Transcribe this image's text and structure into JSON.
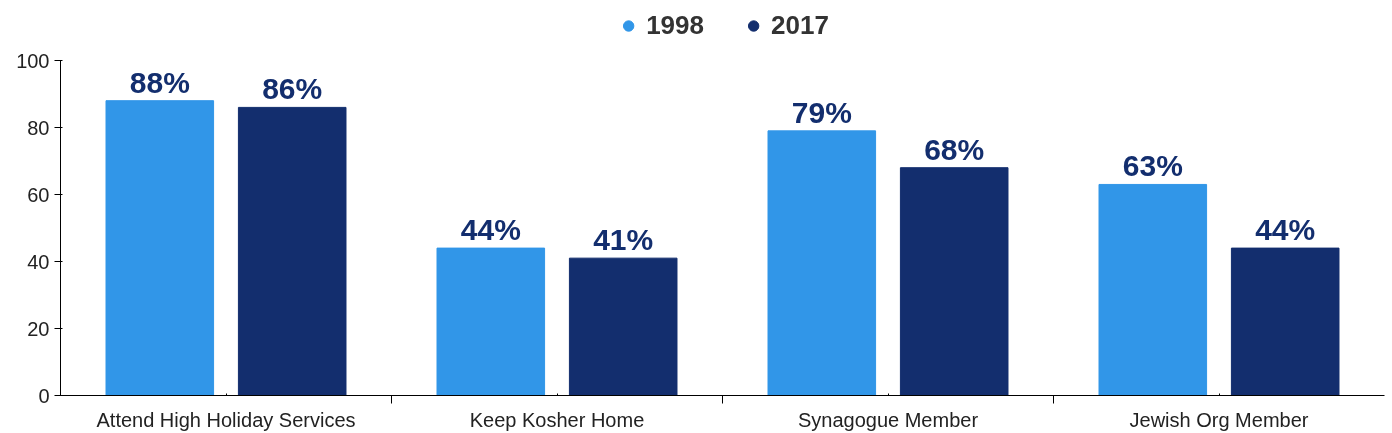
{
  "chart_data": {
    "type": "bar",
    "categories": [
      "Attend High Holiday Services",
      "Keep Kosher Home",
      "Synagogue Member",
      "Jewish Org Member"
    ],
    "series": [
      {
        "name": "1998",
        "color": "#3196e8",
        "values": [
          88,
          44,
          79,
          63
        ],
        "value_labels": [
          "88%",
          "44%",
          "79%",
          "63%"
        ]
      },
      {
        "name": "2017",
        "color": "#132e6e",
        "values": [
          86,
          41,
          68,
          44
        ],
        "value_labels": [
          "86%",
          "41%",
          "68%",
          "44%"
        ]
      }
    ],
    "ylim": [
      0,
      100
    ],
    "yticks": [
      0,
      20,
      40,
      60,
      80,
      100
    ],
    "grid": false,
    "legend": "top"
  }
}
